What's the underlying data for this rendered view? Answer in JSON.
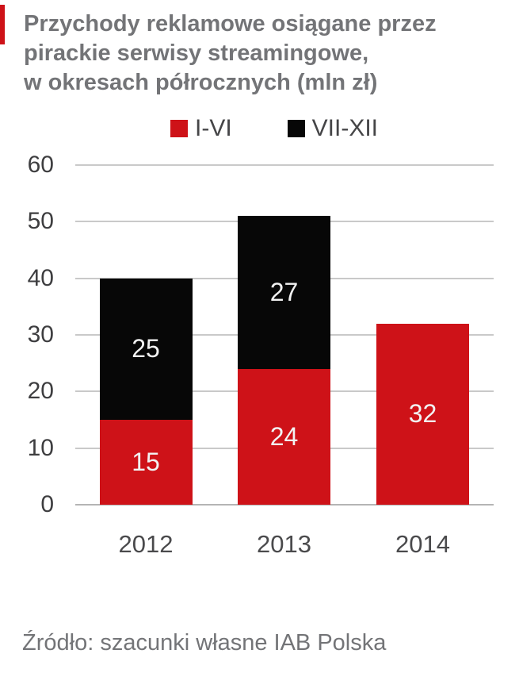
{
  "accent_color": "#ce1218",
  "title": {
    "line1": "Przychody reklamowe osiągane przez",
    "line2": "pirackie serwisy streamingowe,",
    "line3": "w okresach półrocznych (mln zł)"
  },
  "legend": {
    "items": [
      {
        "label": "I-VI",
        "color": "#ce1218"
      },
      {
        "label": "VII-XII",
        "color": "#070707"
      }
    ]
  },
  "chart_data": {
    "type": "bar",
    "stacked": true,
    "title": "Przychody reklamowe osiągane przez pirackie serwisy streamingowe, w okresach półrocznych (mln zł)",
    "categories": [
      "2012",
      "2013",
      "2014"
    ],
    "series": [
      {
        "name": "I-VI",
        "color": "#ce1218",
        "values": [
          15,
          24,
          32
        ]
      },
      {
        "name": "VII-XII",
        "color": "#070707",
        "values": [
          25,
          27,
          0
        ]
      }
    ],
    "totals": [
      40,
      51,
      32
    ],
    "y_ticks": [
      0,
      10,
      20,
      30,
      40,
      50,
      60
    ],
    "ylim": [
      0,
      60
    ],
    "xlabel": "",
    "ylabel": "",
    "unit": "mln zł",
    "grid": true,
    "legend_position": "top",
    "value_labels": "inside-white"
  },
  "source": "Źródło: szacunki własne IAB Polska",
  "colors": {
    "grid": "#c9c9c9",
    "baseline": "#b5b5b5",
    "axis_text": "#3e3e40",
    "title_text": "#737477",
    "value_text": "#f2f2f2"
  }
}
